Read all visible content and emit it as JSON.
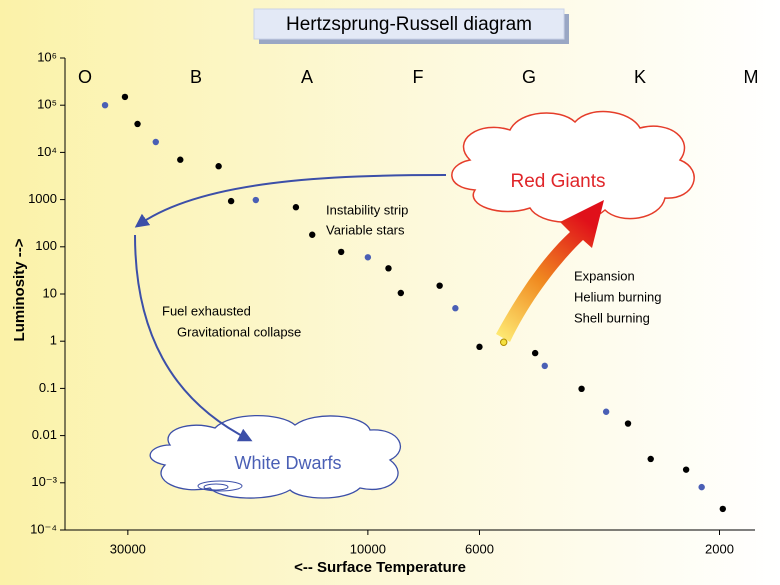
{
  "chart_data": {
    "type": "scatter",
    "title": "Hertzsprung-Russell diagram",
    "x_label": "<--  Surface Temperature",
    "y_label": "Luminosity  -->",
    "spectral_classes": [
      "O",
      "B",
      "A",
      "F",
      "G",
      "K",
      "M"
    ],
    "annotations": {
      "red_giants": "Red Giants",
      "white_dwarfs": "White Dwarfs",
      "instability": [
        "Instability strip",
        "Variable stars"
      ],
      "collapse": [
        "Fuel exhausted",
        "Gravitational collapse"
      ],
      "expansion": [
        "Expansion",
        "Helium burning",
        "Shell burning"
      ]
    },
    "x_scale": "log",
    "y_scale": "log",
    "xlim": [
      40000,
      1700
    ],
    "xticks": [
      30000,
      10000,
      6000,
      2000
    ],
    "ylim": [
      0.0001,
      1000000
    ],
    "yticks": [
      {
        "value": 1000000,
        "label": "10⁶"
      },
      {
        "value": 100000,
        "label": "10⁵"
      },
      {
        "value": 10000,
        "label": "10⁴"
      },
      1000,
      100,
      10,
      1,
      0.1,
      0.01,
      {
        "value": 0.001,
        "label": "10⁻³"
      },
      {
        "value": 0.0001,
        "label": "10⁻⁴"
      }
    ],
    "series": [
      {
        "color": "#000000",
        "x": [
          30400,
          28700,
          23600,
          19800,
          18700,
          13900,
          12900,
          11300,
          9100,
          8600,
          7200,
          6000,
          4650,
          3760,
          3040,
          2740,
          2330,
          1970
        ],
        "values": [
          150000,
          40000,
          7000,
          5100,
          930,
          690,
          180,
          78,
          35,
          10.5,
          15,
          0.76,
          0.56,
          0.098,
          0.018,
          0.0032,
          0.0019,
          0.00028
        ]
      },
      {
        "color": "#4a5fb5",
        "x": [
          33300,
          26400,
          16700,
          10000,
          6700,
          4450,
          3360,
          2170
        ],
        "values": [
          100000,
          16600,
          980,
          60,
          5,
          0.3,
          0.032,
          0.00081
        ]
      },
      {
        "color": "#f5e040",
        "x": [
          5370
        ],
        "values": [
          0.95
        ]
      }
    ]
  }
}
